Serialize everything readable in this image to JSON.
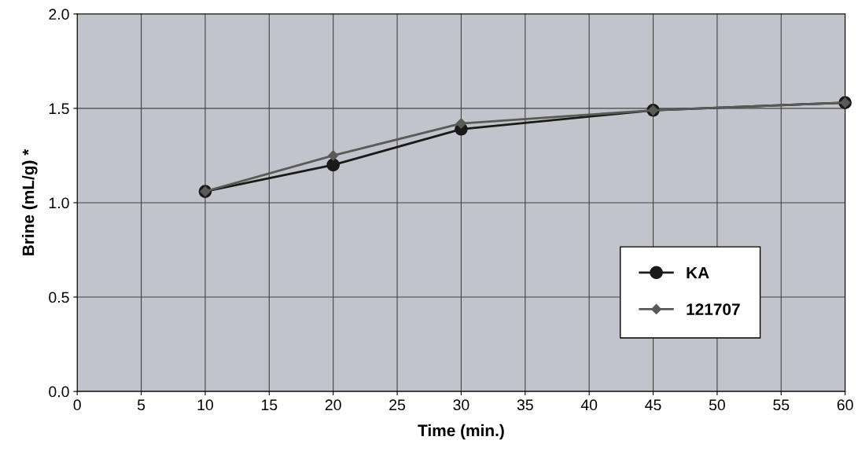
{
  "chart_data": {
    "type": "line",
    "xlabel": "Time (min.)",
    "ylabel": "Brine (mL/g) *",
    "x": [
      10,
      20,
      30,
      45,
      60
    ],
    "series": [
      {
        "name": "KA",
        "color": "#1a1a1a",
        "marker": "circle",
        "values": [
          1.06,
          1.2,
          1.39,
          1.49,
          1.53
        ]
      },
      {
        "name": "121707",
        "color": "#5a5a5a",
        "marker": "diamond",
        "values": [
          1.06,
          1.25,
          1.42,
          1.49,
          1.53
        ]
      }
    ],
    "xlim": [
      0,
      60
    ],
    "xticks": [
      0,
      5,
      10,
      15,
      20,
      25,
      30,
      35,
      40,
      45,
      50,
      55,
      60
    ],
    "ylim": [
      0,
      2
    ],
    "yticks": [
      {
        "value": 0,
        "label": "0.0"
      },
      {
        "value": 0.5,
        "label": "0.5"
      },
      {
        "value": 1,
        "label": "1.0"
      },
      {
        "value": 1.5,
        "label": "1.5"
      },
      {
        "value": 2,
        "label": "2.0"
      }
    ],
    "grid": true,
    "legend": "bottom right",
    "line_style": "solid"
  }
}
